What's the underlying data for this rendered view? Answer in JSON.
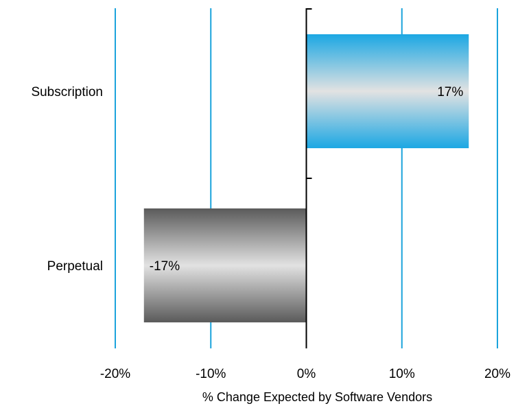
{
  "chart_data": {
    "type": "bar",
    "orientation": "horizontal",
    "categories": [
      "Subscription",
      "Perpetual"
    ],
    "values": [
      17,
      -17
    ],
    "data_labels": [
      "17%",
      "-17%"
    ],
    "xlim": [
      -20,
      20
    ],
    "x_ticks": [
      -20,
      -10,
      0,
      10,
      20
    ],
    "x_tick_labels": [
      "-20%",
      "-10%",
      "0%",
      "10%",
      "20%"
    ],
    "xlabel": "% Change Expected by Software Vendors",
    "ylabel": "",
    "title": "",
    "grid": true,
    "legend": "none",
    "colors": {
      "gridline": "#1aa3dc",
      "axis": "#000000",
      "positive_edge": "#1ba7e3",
      "positive_center": "#e2e2e2",
      "negative_edge": "#5a5a5a",
      "negative_center": "#e2e2e2"
    }
  }
}
